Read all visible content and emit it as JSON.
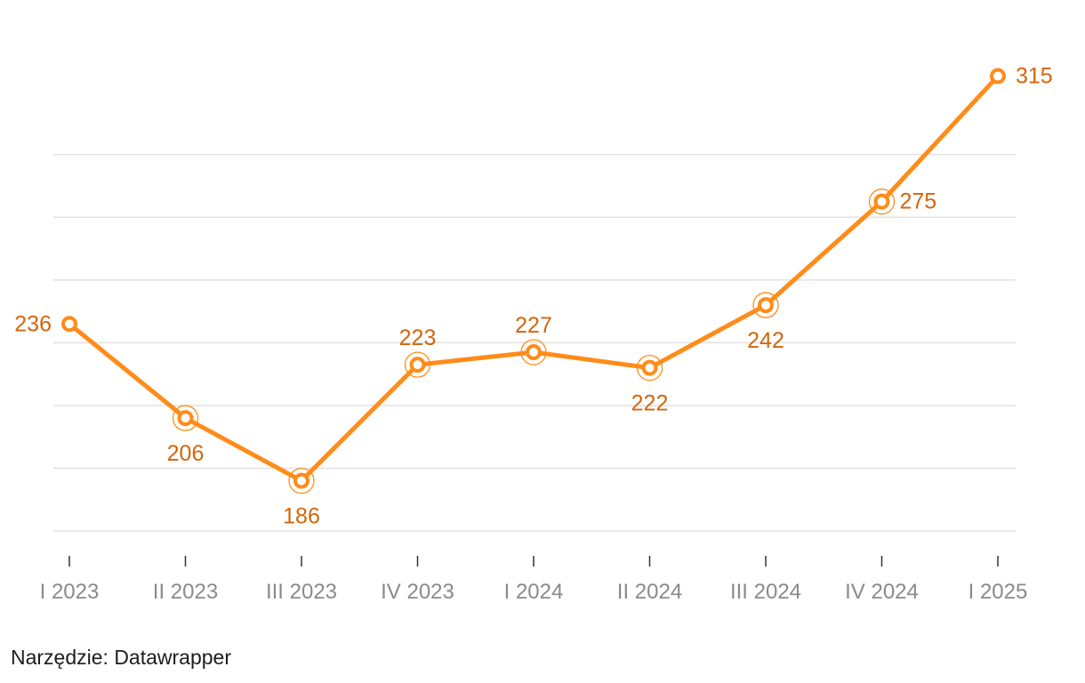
{
  "chart_data": {
    "type": "line",
    "title": "",
    "xlabel": "",
    "ylabel": "",
    "categories": [
      "I 2023",
      "II 2023",
      "III 2023",
      "IV 2023",
      "I 2024",
      "II 2024",
      "III 2024",
      "IV 2024",
      "I 2025"
    ],
    "series": [
      {
        "values": [
          236,
          206,
          186,
          223,
          227,
          222,
          242,
          275,
          315
        ]
      }
    ],
    "ylim": [
      155,
      335
    ],
    "grid": true,
    "label_positions": [
      "left",
      "below",
      "below",
      "above",
      "above",
      "below",
      "below",
      "right",
      "right"
    ],
    "colors": {
      "line": "#ff8c1a",
      "label": "#d4650a",
      "grid": "#e2e2e2",
      "tick_label": "#8a8a8a"
    }
  },
  "footer": {
    "source": "Narzędzie: Datawrapper"
  }
}
